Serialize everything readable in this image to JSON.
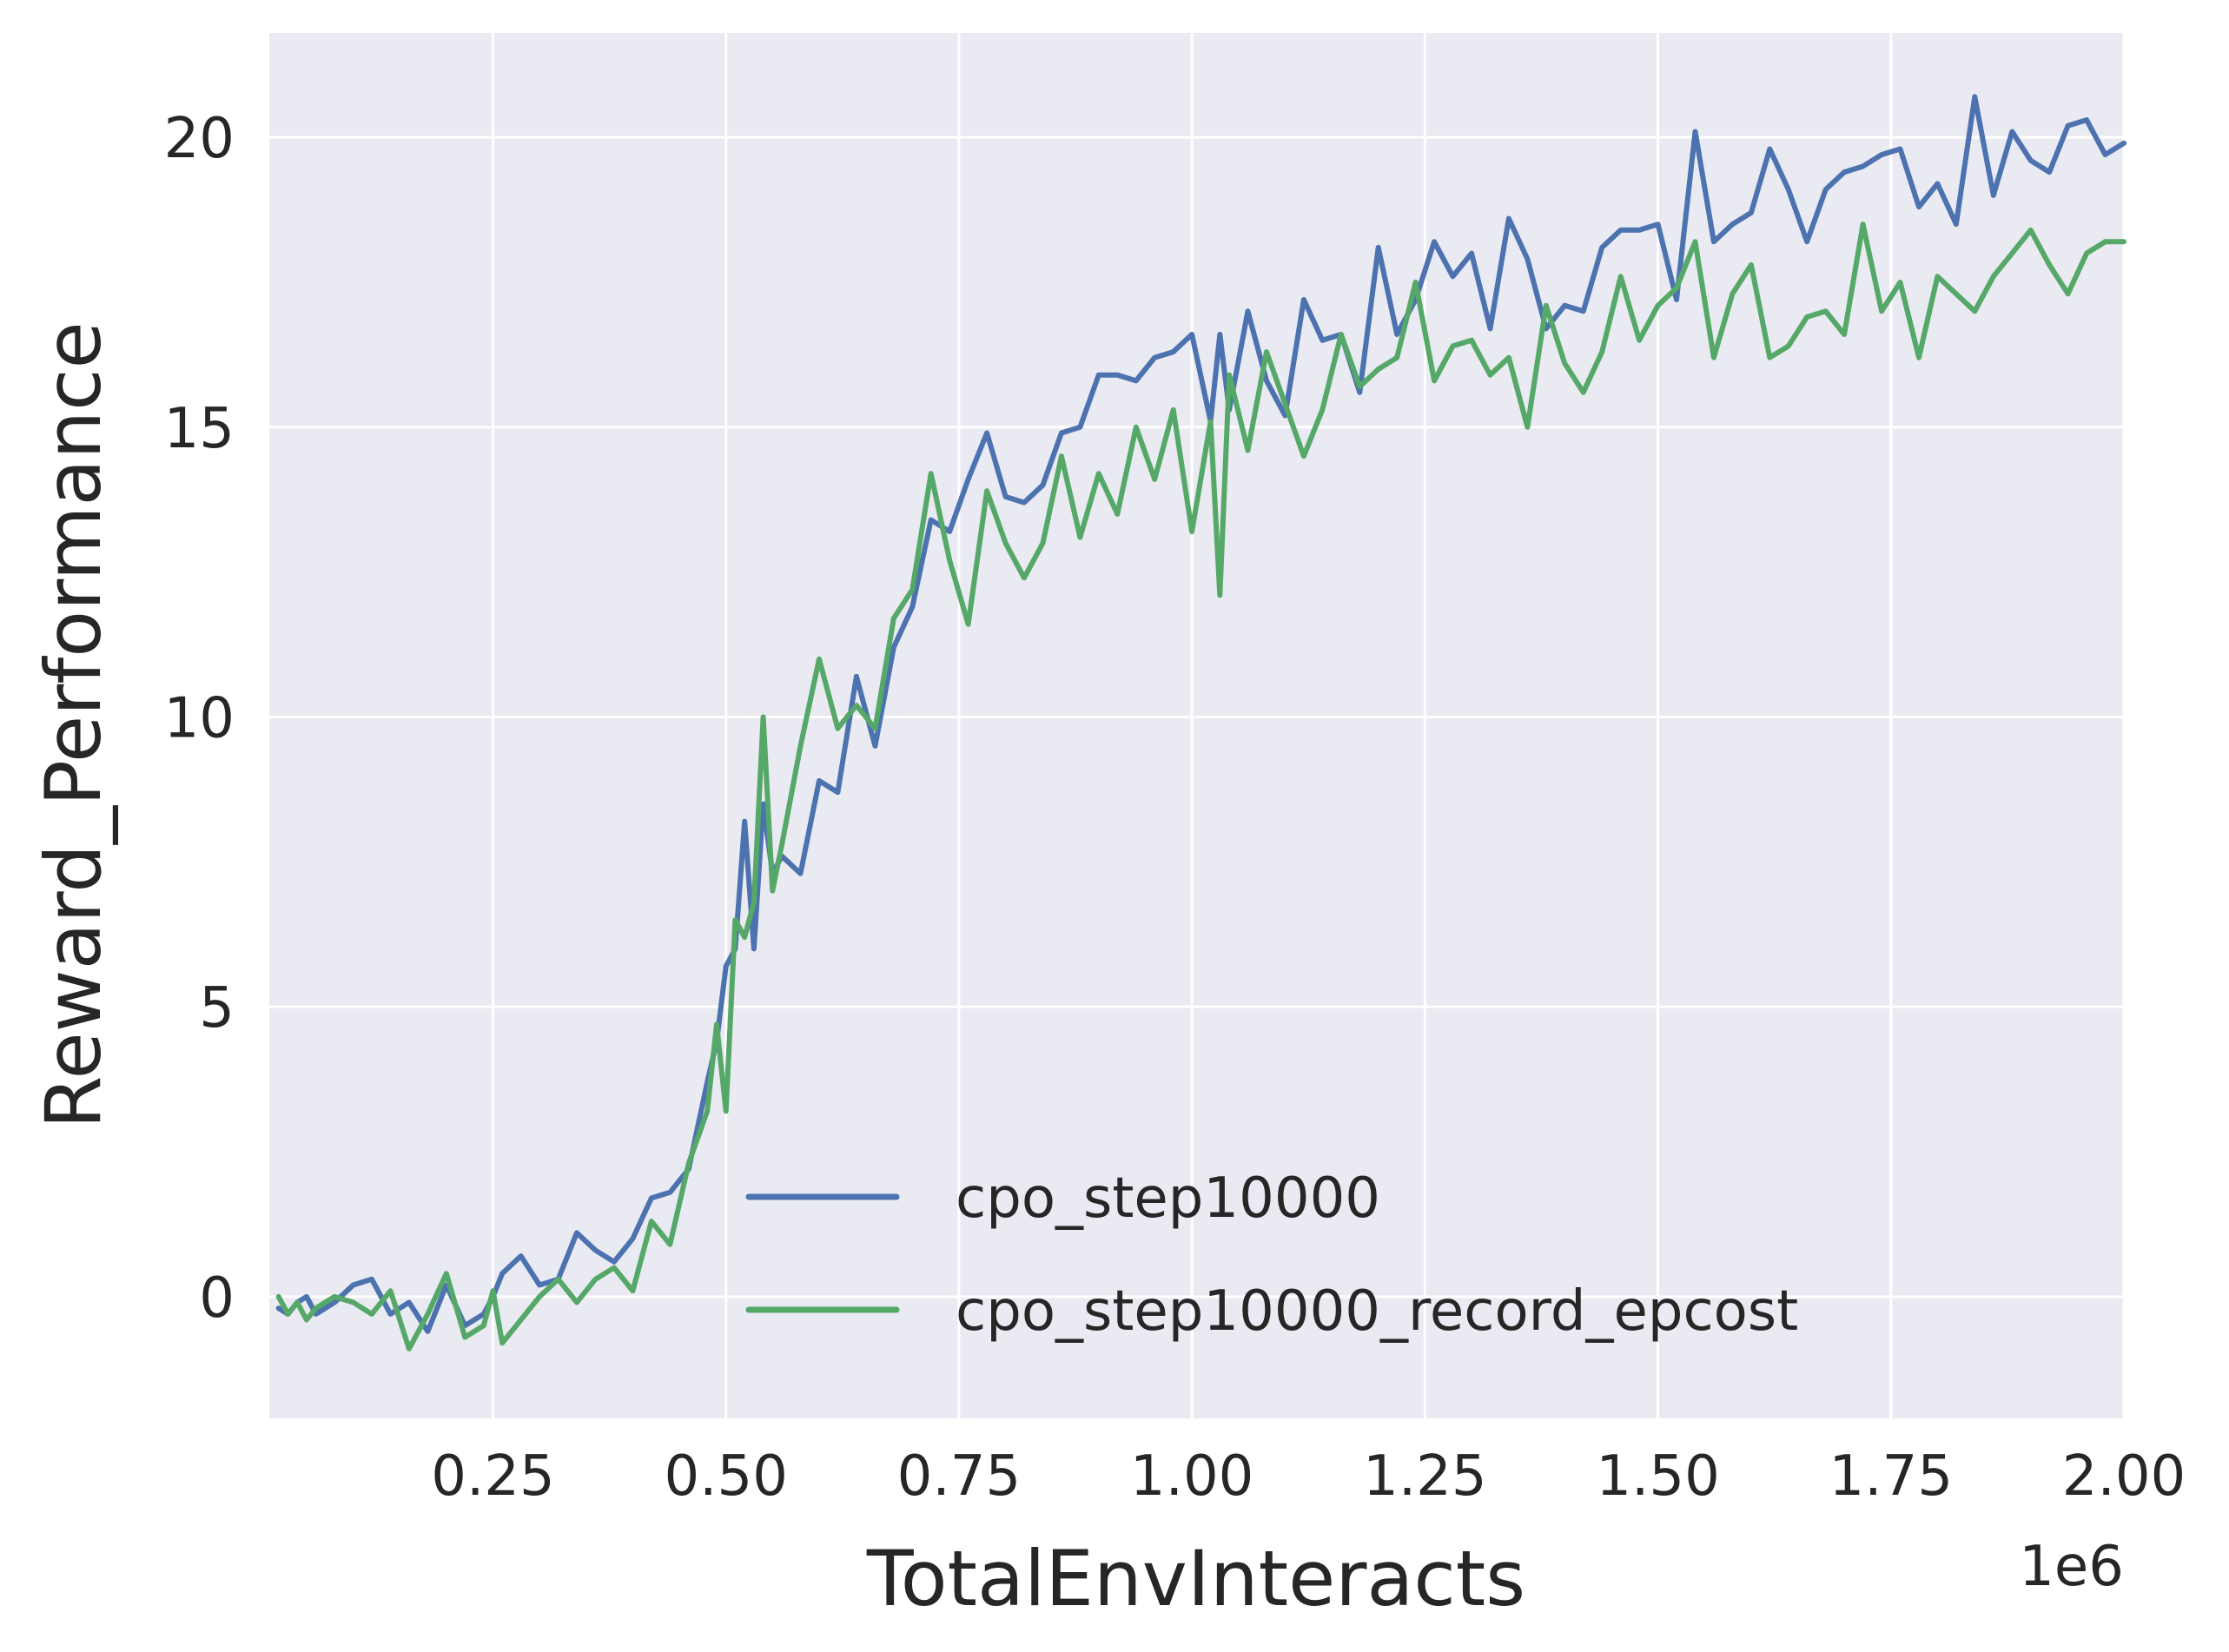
{
  "chart_data": {
    "type": "line",
    "xlabel": "TotalEnvInteracts",
    "ylabel": "Reward_Performance",
    "x_offset_label": "1e6",
    "xlim": [
      0.01,
      2.0
    ],
    "ylim": [
      -2.1,
      21.8
    ],
    "x_ticks": [
      0.25,
      0.5,
      0.75,
      1.0,
      1.25,
      1.5,
      1.75,
      2.0
    ],
    "x_tick_labels": [
      "0.25",
      "0.50",
      "0.75",
      "1.00",
      "1.25",
      "1.50",
      "1.75",
      "2.00"
    ],
    "y_ticks": [
      0,
      5,
      10,
      15,
      20
    ],
    "y_tick_labels": [
      "0",
      "5",
      "10",
      "15",
      "20"
    ],
    "grid": true,
    "legend_position": "lower-right",
    "x": [
      0.02,
      0.03,
      0.04,
      0.05,
      0.06,
      0.08,
      0.1,
      0.12,
      0.14,
      0.16,
      0.18,
      0.2,
      0.22,
      0.24,
      0.25,
      0.26,
      0.28,
      0.3,
      0.32,
      0.34,
      0.36,
      0.38,
      0.4,
      0.42,
      0.44,
      0.46,
      0.48,
      0.49,
      0.5,
      0.51,
      0.52,
      0.53,
      0.54,
      0.55,
      0.56,
      0.58,
      0.6,
      0.62,
      0.64,
      0.66,
      0.68,
      0.7,
      0.72,
      0.74,
      0.76,
      0.78,
      0.8,
      0.82,
      0.84,
      0.86,
      0.88,
      0.9,
      0.92,
      0.94,
      0.96,
      0.98,
      1.0,
      1.02,
      1.03,
      1.04,
      1.06,
      1.08,
      1.1,
      1.12,
      1.14,
      1.16,
      1.18,
      1.2,
      1.22,
      1.24,
      1.26,
      1.28,
      1.3,
      1.32,
      1.34,
      1.36,
      1.38,
      1.4,
      1.42,
      1.44,
      1.46,
      1.48,
      1.5,
      1.52,
      1.54,
      1.56,
      1.58,
      1.6,
      1.62,
      1.64,
      1.66,
      1.68,
      1.7,
      1.72,
      1.74,
      1.76,
      1.78,
      1.8,
      1.82,
      1.84,
      1.86,
      1.88,
      1.9,
      1.92,
      1.94,
      1.96,
      1.98,
      2.0
    ],
    "series": [
      {
        "name": "cpo_step10000",
        "color": "#4c72b0",
        "values": [
          -0.2,
          -0.3,
          -0.1,
          0.0,
          -0.3,
          -0.1,
          0.2,
          0.3,
          -0.3,
          -0.1,
          -0.6,
          0.2,
          -0.5,
          -0.3,
          0.0,
          0.4,
          0.7,
          0.2,
          0.3,
          1.1,
          0.8,
          0.6,
          1.0,
          1.7,
          1.8,
          2.2,
          3.7,
          4.4,
          5.7,
          6.0,
          8.2,
          6.0,
          8.5,
          7.3,
          7.6,
          7.3,
          8.9,
          8.7,
          10.7,
          9.5,
          11.2,
          11.9,
          13.4,
          13.2,
          14.1,
          14.9,
          13.8,
          13.7,
          14.0,
          14.9,
          15.0,
          15.9,
          15.9,
          15.8,
          16.2,
          16.3,
          16.6,
          15.1,
          16.6,
          15.3,
          17.0,
          15.8,
          15.2,
          17.2,
          16.5,
          16.6,
          15.6,
          18.1,
          16.6,
          17.2,
          18.2,
          17.6,
          18.0,
          16.7,
          18.6,
          17.9,
          16.7,
          17.1,
          17.0,
          18.1,
          18.4,
          18.4,
          18.5,
          17.2,
          20.1,
          18.2,
          18.5,
          18.7,
          19.8,
          19.1,
          18.2,
          19.1,
          19.4,
          19.5,
          19.7,
          19.8,
          18.8,
          19.2,
          18.5,
          20.7,
          19.0,
          20.1,
          19.6,
          19.4,
          20.2,
          20.3,
          19.7,
          19.9
        ]
      },
      {
        "name": "cpo_step10000_record_epcost",
        "color": "#55a868",
        "values": [
          0.0,
          -0.3,
          -0.1,
          -0.4,
          -0.2,
          0.0,
          -0.1,
          -0.3,
          0.1,
          -0.9,
          -0.3,
          0.4,
          -0.7,
          -0.5,
          0.1,
          -0.8,
          -0.4,
          0.0,
          0.3,
          -0.1,
          0.3,
          0.5,
          0.1,
          1.3,
          0.9,
          2.3,
          3.2,
          4.7,
          3.2,
          6.5,
          6.2,
          6.8,
          10.0,
          7.0,
          7.8,
          9.5,
          11.0,
          9.8,
          10.2,
          9.8,
          11.7,
          12.2,
          14.2,
          12.7,
          11.6,
          13.9,
          13.0,
          12.4,
          13.0,
          14.5,
          13.1,
          14.2,
          13.5,
          15.0,
          14.1,
          15.3,
          13.2,
          15.1,
          12.1,
          15.9,
          14.6,
          16.3,
          15.4,
          14.5,
          15.3,
          16.6,
          15.7,
          16.0,
          16.2,
          17.5,
          15.8,
          16.4,
          16.5,
          15.9,
          16.2,
          15.0,
          17.1,
          16.1,
          15.6,
          16.3,
          17.6,
          16.5,
          17.1,
          17.4,
          18.2,
          16.2,
          17.3,
          17.8,
          16.2,
          16.4,
          16.9,
          17.0,
          16.6,
          18.5,
          17.0,
          17.5,
          16.2,
          17.6,
          17.3,
          17.0,
          17.6,
          18.0,
          18.4,
          17.8,
          17.3,
          18.0,
          18.2,
          18.2
        ]
      }
    ]
  }
}
